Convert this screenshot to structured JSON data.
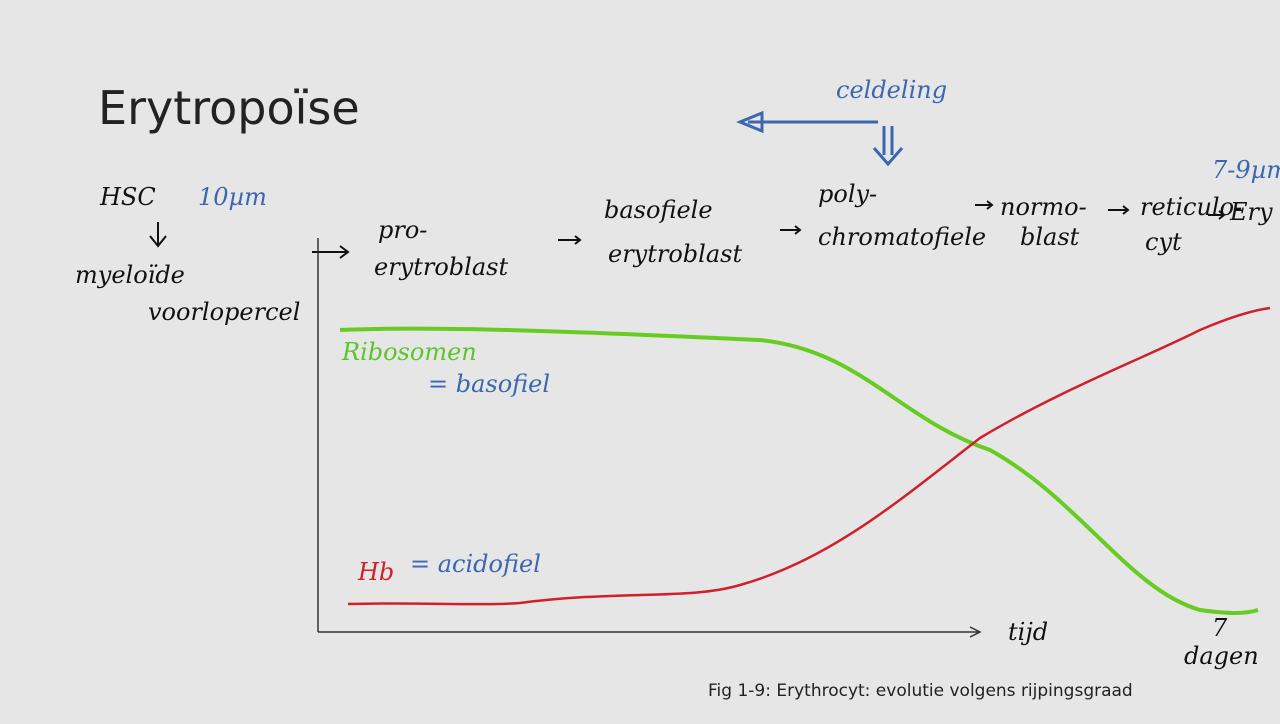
{
  "header": {
    "title": "Erytropoïse"
  },
  "caption": "Fig 1-9: Erythrocyt: evolutie volgens rijpingsgraad",
  "notes": {
    "hsc": "HSC",
    "hsc_size": "10µm",
    "precursor": [
      "myeloïde",
      "voorlopercel"
    ],
    "stages": [
      [
        "pro-",
        "erytroblast"
      ],
      [
        "basofiele",
        "erytroblast"
      ],
      [
        "poly-",
        "chromatofiele"
      ],
      [
        "normo-",
        "blast"
      ],
      [
        "reticulo-",
        "cyt"
      ]
    ],
    "end": "Ery",
    "end_size": "7-9µm",
    "division": "celdeling",
    "ribosomes": "Ribosomen",
    "ribosomes_note": "= basofiel",
    "hb": "Hb",
    "hb_note": "= acidofiel",
    "time": "tijd",
    "days": "7",
    "days_unit": "dagen"
  }
}
